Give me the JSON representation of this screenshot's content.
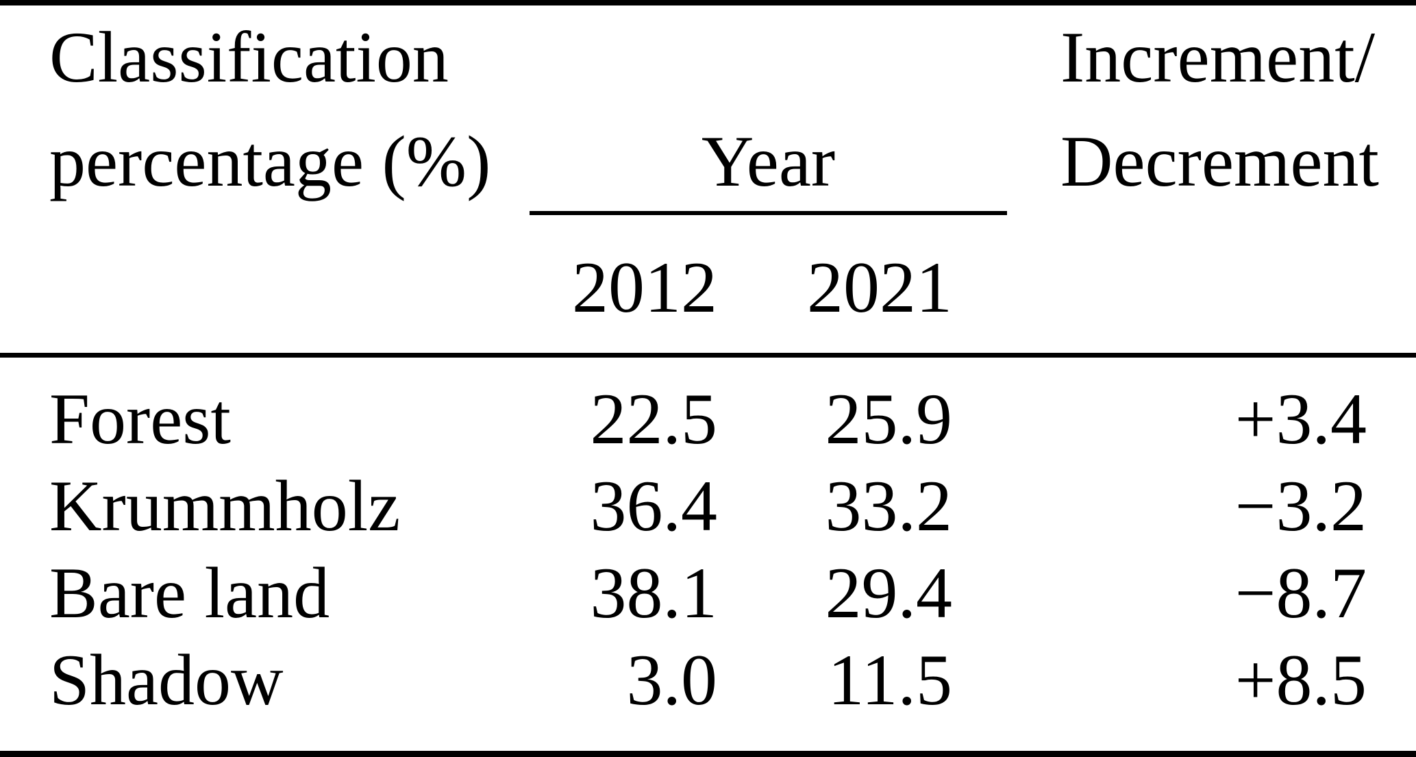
{
  "chart_data": {
    "type": "table",
    "title": "Classification percentage (%) by year",
    "column_group_header": "Year",
    "columns": [
      "Classification percentage (%)",
      "2012",
      "2021",
      "Increment/Decrement"
    ],
    "rows": [
      {
        "label": "Forest",
        "y2012": 22.5,
        "y2021": 25.9,
        "change": 3.4
      },
      {
        "label": "Krummholz",
        "y2012": 36.4,
        "y2021": 33.2,
        "change": -3.2
      },
      {
        "label": "Bare land",
        "y2012": 38.1,
        "y2021": 29.4,
        "change": -8.7
      },
      {
        "label": "Shadow",
        "y2012": 3.0,
        "y2021": 11.5,
        "change": 8.5
      }
    ]
  },
  "table": {
    "stub_header_line1": "Classification",
    "stub_header_line2": "percentage (%)",
    "year_group_header": "Year",
    "inc_header_line1": "Increment/",
    "inc_header_line2": "Decrement",
    "year_columns": [
      "2012",
      "2021"
    ],
    "rows": [
      {
        "label": "Forest",
        "y2012": "22.5",
        "y2021": "25.9",
        "change": "+3.4"
      },
      {
        "label": "Krummholz",
        "y2012": "36.4",
        "y2021": "33.2",
        "change": "−3.2"
      },
      {
        "label": "Bare land",
        "y2012": "38.1",
        "y2021": "29.4",
        "change": "−8.7"
      },
      {
        "label": "Shadow",
        "y2012": "3.0",
        "y2021": "11.5",
        "change": "+8.5"
      }
    ]
  },
  "colors": {
    "text": "#000000",
    "background": "#ffffff",
    "rule": "#000000"
  }
}
